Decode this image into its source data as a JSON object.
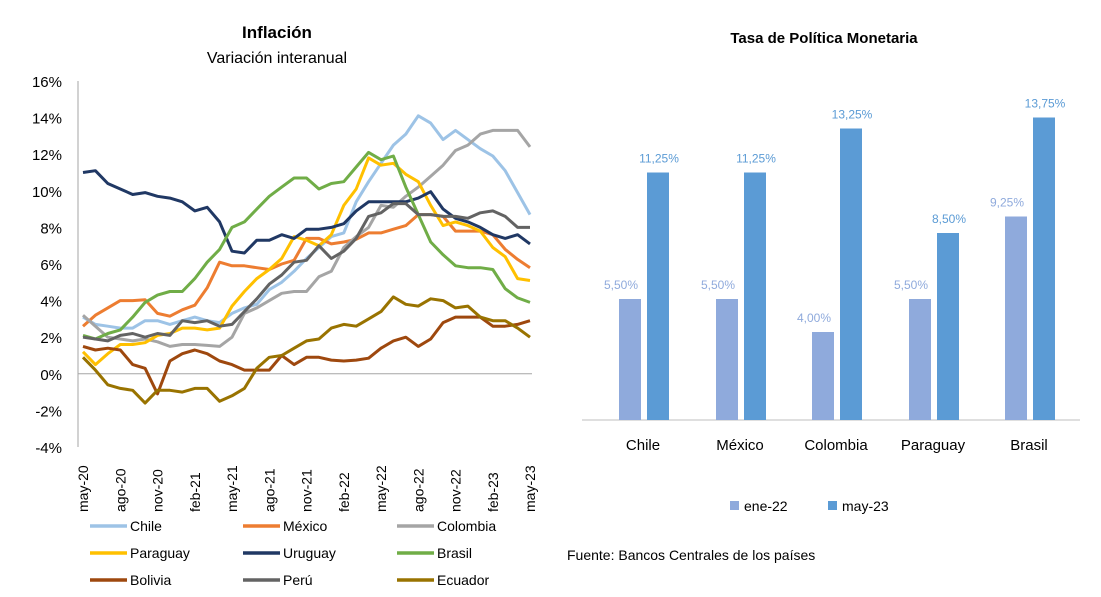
{
  "chart_data": [
    {
      "type": "line",
      "title": "Inflación",
      "subtitle": "Variación interanual",
      "xlabel": "",
      "ylabel": "",
      "ylim": [
        -4,
        16
      ],
      "y_ticks": [
        "16%",
        "14%",
        "12%",
        "10%",
        "8%",
        "6%",
        "4%",
        "2%",
        "0%",
        "-2%",
        "-4%"
      ],
      "y_tick_values": [
        16,
        14,
        12,
        10,
        8,
        6,
        4,
        2,
        0,
        -2,
        -4
      ],
      "x": [
        "may-20",
        "jun-20",
        "jul-20",
        "ago-20",
        "sep-20",
        "oct-20",
        "nov-20",
        "dic-20",
        "ene-21",
        "feb-21",
        "mar-21",
        "abr-21",
        "may-21",
        "jun-21",
        "jul-21",
        "ago-21",
        "sep-21",
        "oct-21",
        "nov-21",
        "dic-21",
        "ene-22",
        "feb-22",
        "mar-22",
        "abr-22",
        "may-22",
        "jun-22",
        "jul-22",
        "ago-22",
        "sep-22",
        "oct-22",
        "nov-22",
        "dic-22",
        "ene-23",
        "feb-23",
        "mar-23",
        "abr-23",
        "may-23"
      ],
      "x_ticks": [
        "may-20",
        "ago-20",
        "nov-20",
        "feb-21",
        "may-21",
        "ago-21",
        "nov-21",
        "feb-22",
        "may-22",
        "ago-22",
        "nov-22",
        "feb-23",
        "may-23"
      ],
      "grid": false,
      "legend_placement": "bottom",
      "series": [
        {
          "name": "Chile",
          "color": "#9DC3E6",
          "values": [
            3.1,
            2.7,
            2.6,
            2.5,
            2.5,
            2.9,
            2.9,
            2.7,
            2.9,
            3.1,
            2.9,
            2.8,
            3.3,
            3.6,
            3.8,
            4.6,
            5.0,
            5.6,
            6.3,
            6.9,
            7.5,
            7.7,
            9.4,
            10.5,
            11.5,
            12.5,
            13.1,
            14.1,
            13.7,
            12.8,
            13.3,
            12.8,
            12.3,
            11.9,
            11.1,
            9.9,
            8.7
          ]
        },
        {
          "name": "México",
          "color": "#ED7D31",
          "values": [
            2.6,
            3.2,
            3.6,
            4.0,
            4.0,
            4.05,
            3.3,
            3.15,
            3.5,
            3.75,
            4.7,
            6.1,
            5.9,
            5.9,
            5.8,
            5.7,
            6.0,
            6.2,
            7.4,
            7.4,
            7.1,
            7.2,
            7.35,
            7.7,
            7.7,
            7.9,
            8.1,
            8.7,
            8.7,
            8.6,
            7.8,
            7.8,
            7.8,
            7.6,
            6.8,
            6.25,
            5.8
          ]
        },
        {
          "name": "Colombia",
          "color": "#A5A5A5",
          "values": [
            3.2,
            2.6,
            2.0,
            1.9,
            1.8,
            1.9,
            1.75,
            1.5,
            1.6,
            1.6,
            1.55,
            1.5,
            2.0,
            3.3,
            3.6,
            4.0,
            4.4,
            4.5,
            4.5,
            5.3,
            5.6,
            6.9,
            7.5,
            8.0,
            9.2,
            9.1,
            9.7,
            10.2,
            10.8,
            11.4,
            12.2,
            12.5,
            13.1,
            13.3,
            13.3,
            13.3,
            12.4
          ]
        },
        {
          "name": "Paraguay",
          "color": "#FFC000",
          "values": [
            1.2,
            0.5,
            1.1,
            1.6,
            1.6,
            1.7,
            2.1,
            2.2,
            2.5,
            2.5,
            2.4,
            2.5,
            3.7,
            4.5,
            5.2,
            5.7,
            6.3,
            7.5,
            7.3,
            7.0,
            7.6,
            9.2,
            10.1,
            11.8,
            11.4,
            11.5,
            10.9,
            10.5,
            9.2,
            8.1,
            8.3,
            8.1,
            7.8,
            6.9,
            6.4,
            5.2,
            5.1
          ]
        },
        {
          "name": "Uruguay",
          "color": "#203864",
          "values": [
            11.0,
            11.1,
            10.4,
            10.1,
            9.8,
            9.9,
            9.7,
            9.6,
            9.4,
            8.9,
            9.1,
            8.3,
            6.7,
            6.6,
            7.3,
            7.3,
            7.6,
            7.4,
            7.9,
            7.9,
            8.0,
            8.2,
            8.9,
            9.4,
            9.4,
            9.4,
            9.4,
            9.6,
            9.95,
            9.0,
            8.5,
            8.3,
            8.0,
            7.6,
            7.4,
            7.6,
            7.1
          ]
        },
        {
          "name": "Brasil",
          "color": "#70AD47",
          "values": [
            2.1,
            1.9,
            2.2,
            2.4,
            3.1,
            3.9,
            4.3,
            4.5,
            4.5,
            5.2,
            6.1,
            6.8,
            8.0,
            8.3,
            9.0,
            9.7,
            10.2,
            10.7,
            10.7,
            10.1,
            10.4,
            10.5,
            11.3,
            12.1,
            11.7,
            11.9,
            10.2,
            8.7,
            7.2,
            6.5,
            5.9,
            5.8,
            5.8,
            5.7,
            4.65,
            4.15,
            3.9
          ]
        },
        {
          "name": "Bolivia",
          "color": "#9E480E",
          "values": [
            1.5,
            1.3,
            1.4,
            1.3,
            0.5,
            0.3,
            -1.1,
            0.7,
            1.1,
            1.3,
            1.1,
            0.7,
            0.5,
            0.2,
            0.2,
            0.2,
            1.0,
            0.5,
            0.9,
            0.9,
            0.75,
            0.7,
            0.75,
            0.85,
            1.4,
            1.8,
            2.0,
            1.5,
            1.9,
            2.8,
            3.1,
            3.1,
            3.1,
            2.6,
            2.6,
            2.7,
            2.9
          ]
        },
        {
          "name": "Perú",
          "color": "#636363",
          "values": [
            2.0,
            1.9,
            1.8,
            2.1,
            2.2,
            2.0,
            2.2,
            2.1,
            2.9,
            2.8,
            2.9,
            2.6,
            2.7,
            3.4,
            4.1,
            4.9,
            5.4,
            6.1,
            6.2,
            7.0,
            6.3,
            6.7,
            7.4,
            8.6,
            8.8,
            9.3,
            9.3,
            8.7,
            8.7,
            8.6,
            8.6,
            8.5,
            8.8,
            8.9,
            8.6,
            8.0,
            8.0
          ]
        },
        {
          "name": "Ecuador",
          "color": "#997300",
          "values": [
            0.9,
            0.2,
            -0.6,
            -0.8,
            -0.9,
            -1.6,
            -0.9,
            -0.9,
            -1.0,
            -0.8,
            -0.8,
            -1.5,
            -1.2,
            -0.8,
            0.3,
            0.9,
            1.0,
            1.4,
            1.8,
            1.9,
            2.5,
            2.7,
            2.6,
            3.0,
            3.4,
            4.2,
            3.8,
            3.7,
            4.1,
            4.0,
            3.6,
            3.7,
            3.1,
            2.9,
            2.9,
            2.5,
            2.0
          ]
        }
      ]
    },
    {
      "type": "bar",
      "title": "Tasa de Política Monetaria",
      "categories": [
        "Chile",
        "México",
        "Colombia",
        "Paraguay",
        "Brasil"
      ],
      "legend_placement": "bottom",
      "grid": false,
      "series": [
        {
          "name": "ene-22",
          "color": "#8FAADC",
          "values": [
            5.5,
            5.5,
            4.0,
            5.5,
            9.25
          ],
          "labels": [
            "5,50%",
            "5,50%",
            "4,00%",
            "5,50%",
            "9,25%"
          ]
        },
        {
          "name": "may-23",
          "color": "#5B9BD5",
          "values": [
            11.25,
            11.25,
            13.25,
            8.5,
            13.75
          ],
          "labels": [
            "11,25%",
            "11,25%",
            "13,25%",
            "8,50%",
            "13,75%"
          ]
        }
      ]
    }
  ],
  "source_note": "Fuente: Bancos Centrales de los países"
}
